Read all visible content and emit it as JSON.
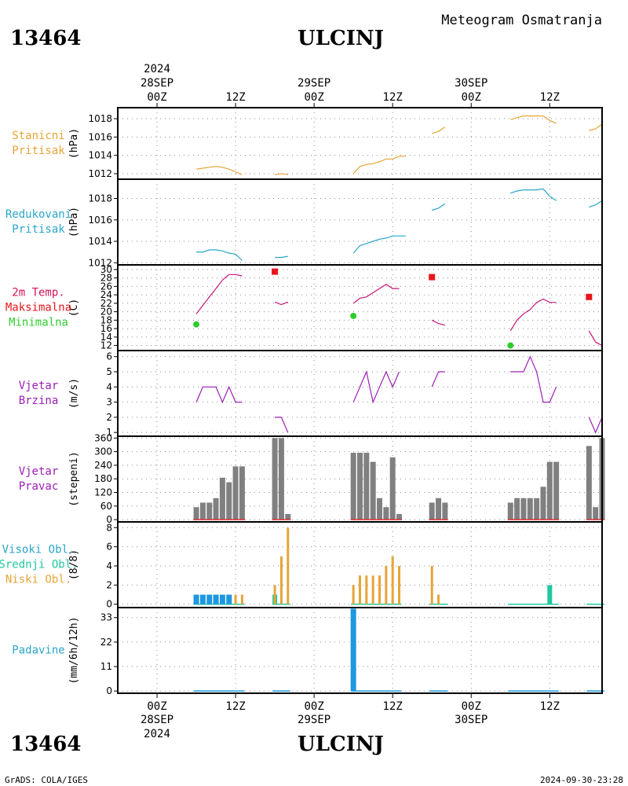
{
  "header": {
    "station_id": "13464",
    "station_name": "ULCINJ",
    "product": "Meteogram Osmatranja"
  },
  "footer": {
    "station_id": "13464",
    "station_name": "ULCINJ",
    "software": "GrADS: COLA/IGES",
    "timestamp": "2024-09-30-23:28"
  },
  "time_axis": {
    "range_hours": [
      -6,
      68
    ],
    "tick_hours": [
      0,
      12,
      24,
      36,
      48,
      60
    ],
    "tick_labels": [
      "00Z",
      "12Z",
      "00Z",
      "12Z",
      "00Z",
      "12Z"
    ],
    "date_labels": [
      {
        "hour": 0,
        "day": "28SEP",
        "year": "2024"
      },
      {
        "hour": 24,
        "day": "29SEP",
        "year": ""
      },
      {
        "hour": 48,
        "day": "30SEP",
        "year": ""
      }
    ]
  },
  "chart_data": [
    {
      "type": "line",
      "id": "station_pressure",
      "labels": [
        "Stanicni",
        "Pritisak"
      ],
      "label_color": "#e6a437",
      "ylabel": "(hPa)",
      "ylim": [
        1011.4,
        1019.2
      ],
      "yticks": [
        1012,
        1014,
        1016,
        1018
      ],
      "color": "#e6a437",
      "segments": [
        [
          [
            6,
            1012.5
          ],
          [
            7,
            1012.6
          ],
          [
            8,
            1012.7
          ],
          [
            9,
            1012.8
          ],
          [
            10,
            1012.7
          ],
          [
            11,
            1012.5
          ],
          [
            12,
            1012.2
          ],
          [
            13,
            1011.9
          ]
        ],
        [
          [
            18,
            1011.9
          ],
          [
            19,
            1012.0
          ],
          [
            20,
            1011.9
          ]
        ],
        [
          [
            30,
            1012.0
          ],
          [
            31,
            1012.8
          ],
          [
            32,
            1013.0
          ],
          [
            33,
            1013.1
          ],
          [
            34,
            1013.3
          ],
          [
            35,
            1013.6
          ],
          [
            36,
            1013.6
          ],
          [
            37,
            1013.9
          ],
          [
            38,
            1013.9
          ]
        ],
        [
          [
            42,
            1016.4
          ],
          [
            43,
            1016.6
          ],
          [
            44,
            1017.1
          ]
        ],
        [
          [
            54,
            1017.9
          ],
          [
            55,
            1018.1
          ],
          [
            56,
            1018.3
          ],
          [
            57,
            1018.3
          ],
          [
            58,
            1018.3
          ],
          [
            59,
            1018.3
          ],
          [
            60,
            1017.8
          ],
          [
            61,
            1017.5
          ]
        ],
        [
          [
            66,
            1016.7
          ],
          [
            67,
            1016.9
          ],
          [
            68,
            1017.4
          ]
        ]
      ]
    },
    {
      "type": "line",
      "id": "reduced_pressure",
      "labels": [
        "Redukovani",
        "Pritisak"
      ],
      "label_color": "#2aa6c8",
      "ylabel": "(hPa)",
      "ylim": [
        1011.8,
        1019.8
      ],
      "yticks": [
        1012,
        1014,
        1016,
        1018
      ],
      "color": "#2aa6c8",
      "segments": [
        [
          [
            6,
            1013.0
          ],
          [
            7,
            1013.0
          ],
          [
            8,
            1013.2
          ],
          [
            9,
            1013.2
          ],
          [
            10,
            1013.1
          ],
          [
            11,
            1012.9
          ],
          [
            12,
            1012.8
          ],
          [
            13,
            1012.2
          ]
        ],
        [
          [
            18,
            1012.5
          ],
          [
            19,
            1012.5
          ],
          [
            20,
            1012.6
          ]
        ],
        [
          [
            30,
            1012.9
          ],
          [
            31,
            1013.6
          ],
          [
            32,
            1013.8
          ],
          [
            33,
            1014.0
          ],
          [
            34,
            1014.2
          ],
          [
            35,
            1014.3
          ],
          [
            36,
            1014.5
          ],
          [
            37,
            1014.5
          ],
          [
            38,
            1014.5
          ]
        ],
        [
          [
            42,
            1016.9
          ],
          [
            43,
            1017.1
          ],
          [
            44,
            1017.5
          ]
        ],
        [
          [
            54,
            1018.5
          ],
          [
            55,
            1018.7
          ],
          [
            56,
            1018.8
          ],
          [
            57,
            1018.8
          ],
          [
            58,
            1018.8
          ],
          [
            59,
            1018.9
          ],
          [
            60,
            1018.2
          ],
          [
            61,
            1017.8
          ]
        ],
        [
          [
            66,
            1017.2
          ],
          [
            67,
            1017.4
          ],
          [
            68,
            1017.8
          ]
        ]
      ]
    },
    {
      "type": "line",
      "id": "temperature",
      "labels": [
        "2m Temp.",
        "Maksimalna",
        "Minimalna"
      ],
      "label_colors": [
        "#d4145a",
        "#e8161a",
        "#2ecc2e"
      ],
      "ylabel": "(C)",
      "ylim": [
        10.8,
        31.1
      ],
      "yticks": [
        12,
        14,
        16,
        18,
        20,
        22,
        24,
        26,
        28,
        30
      ],
      "color": "#c8147a",
      "segments": [
        [
          [
            6,
            19.5
          ],
          [
            7,
            21.5
          ],
          [
            8,
            23.5
          ],
          [
            9,
            25.5
          ],
          [
            10,
            27.5
          ],
          [
            11,
            28.8
          ],
          [
            12,
            28.8
          ],
          [
            13,
            28.5
          ]
        ],
        [
          [
            18,
            22.3
          ],
          [
            19,
            21.7
          ],
          [
            20,
            22.3
          ]
        ],
        [
          [
            30,
            22.0
          ],
          [
            31,
            23.2
          ],
          [
            32,
            23.5
          ],
          [
            33,
            24.5
          ],
          [
            34,
            25.5
          ],
          [
            35,
            26.5
          ],
          [
            36,
            25.5
          ],
          [
            37,
            25.5
          ]
        ],
        [
          [
            42,
            18.0
          ],
          [
            43,
            17.2
          ],
          [
            44,
            16.8
          ]
        ],
        [
          [
            54,
            15.5
          ],
          [
            55,
            18.0
          ],
          [
            56,
            19.5
          ],
          [
            57,
            20.5
          ],
          [
            58,
            22.2
          ],
          [
            59,
            23.0
          ],
          [
            60,
            22.2
          ],
          [
            61,
            22.2
          ]
        ],
        [
          [
            66,
            15.5
          ],
          [
            67,
            12.8
          ],
          [
            68,
            12.0
          ]
        ]
      ],
      "maximum": [
        [
          18,
          29.5
        ],
        [
          42,
          28.2
        ],
        [
          66,
          23.5
        ]
      ],
      "maximum_color": "#e8161a",
      "minimum": [
        [
          6,
          17.0
        ],
        [
          30,
          19.0
        ],
        [
          54,
          12.0
        ]
      ],
      "minimum_color": "#2ecc2e"
    },
    {
      "type": "line",
      "id": "wind_speed",
      "labels": [
        "Vjetar",
        "Brzina"
      ],
      "label_color": "#9a1fb5",
      "ylabel": "(m/s)",
      "ylim": [
        0.75,
        6.4
      ],
      "yticks": [
        1,
        2,
        3,
        4,
        5,
        6
      ],
      "color": "#9a1fb5",
      "segments": [
        [
          [
            6,
            3
          ],
          [
            7,
            4
          ],
          [
            8,
            4
          ],
          [
            9,
            4
          ],
          [
            10,
            3
          ],
          [
            11,
            4
          ],
          [
            12,
            3
          ],
          [
            13,
            3
          ]
        ],
        [
          [
            18,
            2
          ],
          [
            19,
            2
          ],
          [
            20,
            1
          ]
        ],
        [
          [
            30,
            3
          ],
          [
            31,
            4
          ],
          [
            32,
            5
          ],
          [
            33,
            3
          ],
          [
            34,
            4
          ],
          [
            35,
            5
          ],
          [
            36,
            4
          ],
          [
            37,
            5
          ]
        ],
        [
          [
            42,
            4
          ],
          [
            43,
            5
          ],
          [
            44,
            5
          ]
        ],
        [
          [
            54,
            5
          ],
          [
            55,
            5
          ],
          [
            56,
            5
          ],
          [
            57,
            6
          ],
          [
            58,
            5
          ],
          [
            59,
            3
          ],
          [
            60,
            3
          ],
          [
            61,
            4
          ]
        ],
        [
          [
            66,
            2
          ],
          [
            67,
            1
          ],
          [
            68,
            2
          ]
        ]
      ]
    },
    {
      "type": "bar",
      "id": "wind_direction",
      "labels": [
        "Vjetar",
        "Pravac"
      ],
      "label_color": "#9a1fb5",
      "ylabel": "(stepeni)",
      "ylim": [
        -10,
        368
      ],
      "yticks": [
        0,
        60,
        120,
        180,
        240,
        300,
        360
      ],
      "color": "#808080",
      "baseline_color": "#e8161a",
      "x": [
        6,
        7,
        8,
        9,
        10,
        11,
        12,
        13,
        18,
        19,
        20,
        30,
        31,
        32,
        33,
        34,
        35,
        36,
        37,
        42,
        43,
        44,
        54,
        55,
        56,
        57,
        58,
        59,
        60,
        61,
        66,
        67,
        68
      ],
      "values": [
        55,
        75,
        75,
        95,
        185,
        165,
        235,
        235,
        360,
        360,
        25,
        295,
        295,
        295,
        255,
        95,
        55,
        275,
        25,
        75,
        95,
        75,
        75,
        95,
        95,
        95,
        95,
        145,
        255,
        255,
        325,
        55,
        360
      ]
    },
    {
      "type": "bar",
      "id": "cloud_cover",
      "labels": [
        "Visoki Obl.",
        "Srednji Obl.",
        "Niski Obl."
      ],
      "label_colors": [
        "#2aa6c8",
        "#1fc8a0",
        "#e6a437"
      ],
      "ylabel": "(8/8)",
      "ylim": [
        -0.35,
        8.6
      ],
      "yticks": [
        0,
        2,
        4,
        6,
        8
      ],
      "high": {
        "color": "#1e98e0",
        "x": [
          6,
          7,
          8,
          9,
          10,
          11
        ],
        "values": [
          1,
          1,
          1,
          1,
          1,
          1
        ]
      },
      "middle": {
        "color": "#1fc8a0",
        "x": [
          18,
          60
        ],
        "values": [
          1,
          2
        ]
      },
      "low": {
        "color": "#e6a437",
        "x": [
          12,
          13,
          18,
          19,
          20,
          30,
          31,
          32,
          33,
          34,
          35,
          36,
          37,
          42,
          43
        ],
        "values": [
          1,
          1,
          2,
          5,
          8,
          2,
          3,
          3,
          3,
          3,
          4,
          5,
          4,
          4,
          1
        ]
      }
    },
    {
      "type": "bar",
      "id": "precipitation",
      "labels": [
        "Padavine"
      ],
      "label_color": "#2aa6c8",
      "ylabel": "(mm/6h/12h)",
      "ylim": [
        -1,
        37.5
      ],
      "yticks": [
        0,
        11,
        22,
        33
      ],
      "color": "#1e98e0",
      "x": [
        30
      ],
      "values": [
        37
      ]
    }
  ]
}
